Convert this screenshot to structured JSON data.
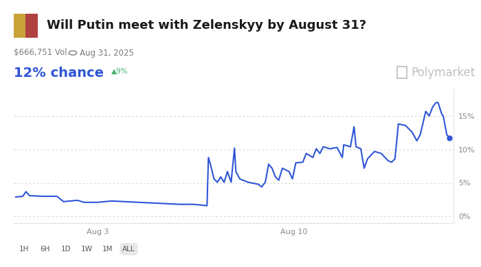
{
  "header": {
    "title": "Will Putin meet with Zelenskyy by August 31?",
    "volume": "$666,751 Vol.",
    "end_date": "Aug 31, 2025",
    "chance": "12% chance",
    "change": "▲9%",
    "watermark": "Polymarket"
  },
  "chart_data": {
    "type": "line",
    "color": "#2d55d6",
    "line_style": "solid",
    "grid": true,
    "x": [
      0.07,
      0.32,
      0.44,
      0.56,
      1.05,
      1.54,
      1.78,
      2.02,
      2.27,
      2.51,
      3.0,
      3.49,
      3.98,
      4.46,
      4.95,
      5.44,
      5.93,
      6.41,
      6.66,
      6.9,
      6.95,
      7.02,
      7.15,
      7.27,
      7.39,
      7.51,
      7.63,
      7.76,
      7.88,
      7.93,
      8.07,
      8.37,
      8.73,
      8.85,
      8.98,
      9.1,
      9.22,
      9.34,
      9.46,
      9.59,
      9.83,
      9.95,
      10.07,
      10.32,
      10.44,
      10.68,
      10.8,
      10.93,
      11.05,
      11.29,
      11.54,
      11.73,
      11.78,
      12.02,
      12.15,
      12.22,
      12.39,
      12.51,
      12.63,
      12.88,
      13.12,
      13.37,
      13.49,
      13.61,
      13.73,
      13.98,
      14.22,
      14.39,
      14.51,
      14.71,
      14.83,
      14.95,
      15.07,
      15.15,
      15.27,
      15.34,
      15.46,
      15.56
    ],
    "values": [
      2.9,
      3.0,
      3.7,
      3.1,
      3.0,
      3.0,
      2.2,
      2.3,
      2.4,
      2.1,
      2.1,
      2.3,
      2.2,
      2.1,
      2.0,
      1.9,
      1.8,
      1.8,
      1.7,
      1.6,
      8.8,
      7.8,
      5.6,
      5.1,
      5.9,
      5.1,
      6.7,
      5.1,
      10.2,
      6.7,
      5.6,
      5.1,
      4.8,
      4.4,
      5.1,
      7.8,
      7.2,
      5.9,
      5.4,
      7.2,
      6.7,
      5.6,
      8.0,
      8.1,
      9.4,
      8.8,
      10.1,
      9.4,
      10.4,
      10.1,
      10.3,
      8.8,
      10.7,
      10.4,
      13.4,
      10.4,
      10.1,
      7.2,
      8.6,
      9.7,
      9.4,
      8.3,
      8.1,
      8.6,
      13.8,
      13.6,
      12.6,
      11.3,
      12.2,
      15.7,
      15.0,
      16.3,
      17.0,
      17.0,
      15.4,
      14.9,
      12.2,
      11.7
    ],
    "xlim": [
      0,
      15.7
    ],
    "xticks": [
      {
        "value": 3,
        "label": "Aug 3"
      },
      {
        "value": 10,
        "label": "Aug 10"
      }
    ],
    "ylim": [
      -1,
      19
    ],
    "yticks": [
      {
        "value": 0,
        "label": "0%"
      },
      {
        "value": 5,
        "label": "5%"
      },
      {
        "value": 10,
        "label": "10%"
      },
      {
        "value": 15,
        "label": "15%"
      }
    ]
  },
  "footer": {
    "buttons": [
      "1H",
      "6H",
      "1D",
      "1W",
      "1M",
      "ALL"
    ]
  }
}
